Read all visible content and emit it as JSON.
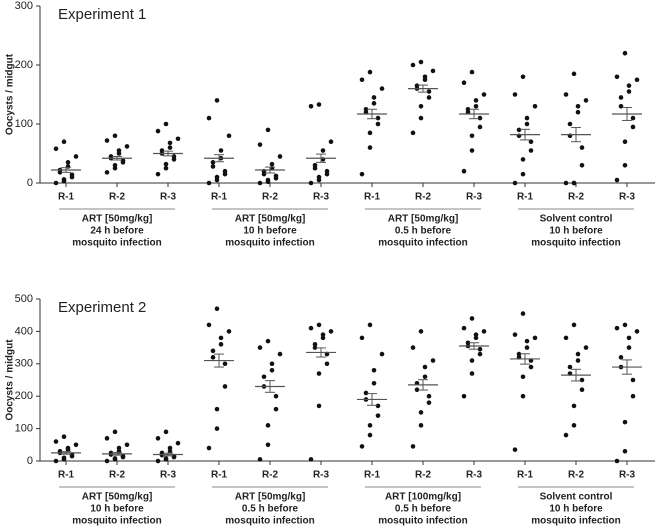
{
  "chart_data": [
    {
      "type": "scatter",
      "title": "Experiment 1",
      "y_label": "Oocysts / midgut",
      "ylim": [
        0,
        300
      ],
      "yticks": [
        0,
        100,
        200,
        300
      ],
      "color": "#111111",
      "categories": [
        "R-1",
        "R-2",
        "R-3",
        "R-1",
        "R-2",
        "R-3",
        "R-1",
        "R-2",
        "R-3",
        "R-1",
        "R-2",
        "R-3"
      ],
      "groups": [
        [
          "ART [50mg/kg]",
          "24 h before",
          "mosquito infection"
        ],
        [
          "ART [50mg/kg]",
          "10 h before",
          "mosquito infection"
        ],
        [
          "ART [50mg/kg]",
          "0.5 h before",
          "mosquito infection"
        ],
        [
          "Solvent control",
          "10 h before",
          "mosquito infection"
        ]
      ],
      "values": [
        [
          0,
          3,
          6,
          10,
          14,
          18,
          22,
          28,
          35,
          45,
          58,
          70
        ],
        [
          18,
          25,
          30,
          35,
          38,
          42,
          45,
          50,
          55,
          62,
          72,
          80
        ],
        [
          15,
          25,
          32,
          40,
          45,
          50,
          55,
          60,
          68,
          75,
          88,
          100
        ],
        [
          0,
          5,
          10,
          15,
          20,
          28,
          35,
          42,
          55,
          80,
          110,
          140
        ],
        [
          0,
          2,
          5,
          8,
          12,
          15,
          20,
          25,
          32,
          45,
          65,
          90
        ],
        [
          0,
          5,
          10,
          15,
          20,
          25,
          30,
          40,
          55,
          70,
          130,
          133
        ],
        [
          15,
          60,
          85,
          100,
          110,
          120,
          125,
          135,
          145,
          160,
          175,
          188
        ],
        [
          85,
          110,
          130,
          145,
          155,
          160,
          165,
          175,
          180,
          190,
          200,
          205
        ],
        [
          20,
          55,
          80,
          95,
          110,
          120,
          125,
          130,
          140,
          150,
          170,
          188
        ],
        [
          0,
          15,
          40,
          55,
          70,
          80,
          90,
          100,
          110,
          130,
          150,
          180
        ],
        [
          0,
          0,
          0,
          30,
          60,
          80,
          100,
          120,
          130,
          140,
          150,
          185
        ],
        [
          5,
          30,
          70,
          95,
          110,
          130,
          145,
          155,
          165,
          175,
          180,
          220
        ]
      ],
      "means": [
        22,
        42,
        50,
        42,
        22,
        42,
        117,
        160,
        117,
        82,
        82,
        117
      ],
      "errors": [
        4,
        3,
        4,
        6,
        5,
        7,
        8,
        6,
        8,
        9,
        12,
        11
      ]
    },
    {
      "type": "scatter",
      "title": "Experiment 2",
      "y_label": "Oocysts / midgut",
      "ylim": [
        0,
        500
      ],
      "yticks": [
        0,
        100,
        200,
        300,
        400,
        500
      ],
      "color": "#111111",
      "categories": [
        "R-1",
        "R-2",
        "R-3",
        "R-1",
        "R-2",
        "R-3",
        "R-1",
        "R-2",
        "R-3",
        "R-1",
        "R-2",
        "R-3"
      ],
      "groups": [
        [
          "ART [50mg/kg]",
          "10 h before",
          "mosquito infection"
        ],
        [
          "ART [50mg/kg]",
          "0.5 h before",
          "mosquito infection"
        ],
        [
          "ART [100mg/kg]",
          "0.5 h before",
          "mosquito infection"
        ],
        [
          "Solvent control",
          "10 h before",
          "mosquito infection"
        ]
      ],
      "values": [
        [
          0,
          5,
          10,
          15,
          20,
          25,
          30,
          35,
          40,
          50,
          60,
          75
        ],
        [
          0,
          5,
          8,
          12,
          15,
          20,
          25,
          30,
          40,
          50,
          70,
          90
        ],
        [
          0,
          5,
          8,
          12,
          15,
          18,
          25,
          30,
          40,
          55,
          70,
          90
        ],
        [
          40,
          100,
          160,
          230,
          300,
          320,
          340,
          360,
          380,
          400,
          420,
          470
        ],
        [
          5,
          50,
          110,
          160,
          200,
          230,
          260,
          280,
          300,
          330,
          350,
          370
        ],
        [
          5,
          170,
          270,
          300,
          330,
          350,
          360,
          380,
          390,
          400,
          410,
          420
        ],
        [
          45,
          80,
          110,
          140,
          170,
          190,
          210,
          240,
          280,
          330,
          380,
          420
        ],
        [
          45,
          110,
          150,
          180,
          200,
          220,
          240,
          260,
          290,
          310,
          350,
          400
        ],
        [
          200,
          270,
          310,
          330,
          345,
          355,
          365,
          380,
          390,
          400,
          410,
          440
        ],
        [
          35,
          200,
          260,
          290,
          310,
          320,
          330,
          350,
          370,
          380,
          390,
          455
        ],
        [
          80,
          110,
          170,
          220,
          250,
          270,
          290,
          310,
          330,
          350,
          380,
          420
        ],
        [
          0,
          30,
          120,
          200,
          250,
          290,
          320,
          350,
          380,
          400,
          410,
          420
        ]
      ],
      "means": [
        25,
        22,
        20,
        310,
        230,
        335,
        190,
        235,
        355,
        315,
        265,
        290
      ],
      "errors": [
        4,
        4,
        4,
        20,
        18,
        14,
        18,
        16,
        10,
        16,
        18,
        22
      ]
    }
  ]
}
